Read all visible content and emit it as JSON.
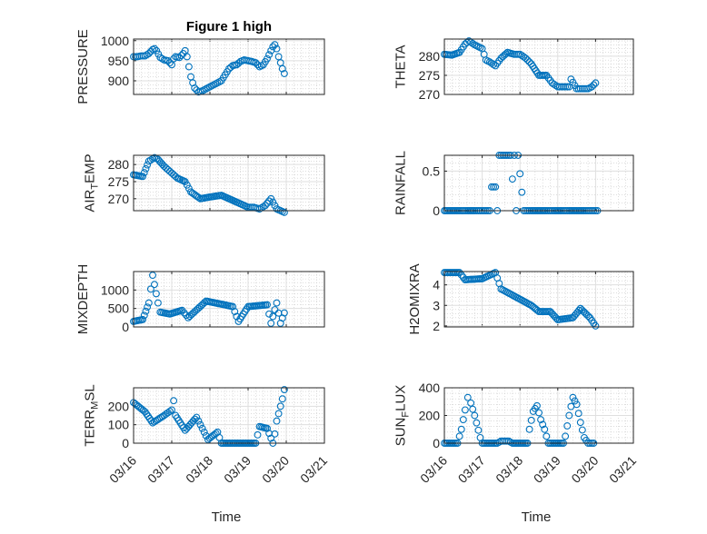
{
  "chart_data": [
    {
      "type": "scatter",
      "title": "Figure 1 high",
      "ylabel": {
        "main": "PRESSURE",
        "sub": "",
        "rest": ""
      },
      "xlabel": "",
      "ylim": [
        866,
        1004
      ],
      "yticks": [
        900,
        950,
        1000
      ],
      "series": [
        {
          "name": "PRESSURE",
          "x": [
            0,
            0.1,
            0.2,
            0.3,
            0.4,
            0.5,
            0.55,
            0.6,
            0.7,
            0.8,
            0.9,
            1.0,
            1.05,
            1.1,
            1.2,
            1.3,
            1.35,
            1.4,
            1.45,
            1.5,
            1.55,
            1.6,
            1.7,
            1.8,
            1.9,
            2.0,
            2.1,
            2.2,
            2.3,
            2.4,
            2.5,
            2.6,
            2.7,
            2.8,
            2.9,
            3.0,
            3.1,
            3.2,
            3.3,
            3.4,
            3.5,
            3.6,
            3.65,
            3.7,
            3.75,
            3.8,
            3.85,
            3.9,
            3.95
          ],
          "y": [
            960,
            960,
            962,
            962,
            968,
            978,
            980,
            975,
            958,
            952,
            950,
            940,
            955,
            960,
            958,
            968,
            975,
            960,
            935,
            910,
            895,
            882,
            872,
            875,
            880,
            885,
            890,
            895,
            900,
            915,
            930,
            938,
            940,
            948,
            952,
            950,
            948,
            945,
            935,
            940,
            955,
            975,
            985,
            990,
            980,
            960,
            945,
            930,
            918
          ]
        }
      ]
    },
    {
      "type": "scatter",
      "title": "",
      "ylabel": {
        "main": "THETA",
        "sub": "",
        "rest": ""
      },
      "xlabel": "",
      "ylim": [
        270,
        284.5
      ],
      "yticks": [
        270,
        275,
        280
      ],
      "series": [
        {
          "name": "THETA",
          "x": [
            0,
            0.2,
            0.4,
            0.55,
            0.65,
            0.8,
            1.0,
            1.1,
            1.2,
            1.35,
            1.5,
            1.67,
            1.85,
            2.0,
            2.15,
            2.3,
            2.5,
            2.7,
            2.85,
            3.0,
            3.15,
            3.3,
            3.35,
            3.5,
            3.65,
            3.8,
            3.9,
            4.0
          ],
          "y": [
            280.5,
            280.3,
            281,
            283.2,
            284,
            283,
            282,
            279,
            278.5,
            277.5,
            279.5,
            281,
            280.5,
            280.5,
            279.5,
            278,
            275,
            275,
            273,
            272,
            272,
            272,
            274,
            271.5,
            271.5,
            271.5,
            272,
            273
          ]
        }
      ]
    },
    {
      "type": "scatter",
      "title": "",
      "ylabel": {
        "main": "AIR",
        "sub": "T",
        "rest": "EMP"
      },
      "xlabel": "",
      "ylim": [
        266.5,
        282.7
      ],
      "yticks": [
        270,
        275,
        280
      ],
      "series": [
        {
          "name": "AIR_TEMP",
          "x": [
            0,
            0.24,
            0.4,
            0.55,
            0.64,
            0.8,
            0.95,
            1.15,
            1.35,
            1.5,
            1.75,
            2.0,
            2.3,
            2.5,
            2.7,
            3.0,
            3.15,
            3.3,
            3.45,
            3.6,
            3.75,
            3.85,
            3.95
          ],
          "y": [
            277,
            276.5,
            281,
            282,
            281.5,
            279.5,
            278,
            276,
            275,
            272,
            270,
            270.5,
            271,
            270,
            269,
            267.5,
            267.5,
            267,
            268,
            270,
            267,
            266.5,
            266
          ]
        }
      ]
    },
    {
      "type": "scatter",
      "title": "",
      "ylabel": {
        "main": "RAINFALL",
        "sub": "",
        "rest": ""
      },
      "xlabel": "",
      "ylim": [
        0,
        0.7
      ],
      "yticks": [
        0,
        0.5
      ],
      "series": [
        {
          "name": "RAINFALL",
          "x": [
            0,
            0.2,
            0.4,
            0.6,
            0.8,
            1.0,
            1.2,
            1.25,
            1.3,
            1.35,
            1.4,
            1.45,
            1.5,
            1.55,
            1.6,
            1.65,
            1.7,
            1.75,
            1.8,
            1.85,
            1.9,
            1.95,
            2.1,
            2.3,
            2.5,
            2.7,
            2.9,
            3.1,
            3.3,
            3.5,
            3.7,
            3.9,
            4.05
          ],
          "y": [
            0,
            0,
            0,
            0,
            0,
            0,
            0,
            0.3,
            0.3,
            0.3,
            0,
            0.7,
            0.7,
            0.7,
            0.7,
            0.7,
            0.7,
            0.7,
            0.4,
            0.7,
            0,
            0.7,
            0,
            0,
            0,
            0,
            0,
            0,
            0,
            0,
            0,
            0,
            0
          ]
        }
      ]
    },
    {
      "type": "scatter",
      "title": "",
      "ylabel": {
        "main": "MIXDEPTH",
        "sub": "",
        "rest": ""
      },
      "xlabel": "",
      "ylim": [
        0,
        1500
      ],
      "yticks": [
        0,
        500,
        1000
      ],
      "series": [
        {
          "name": "MIXDEPTH",
          "x": [
            0,
            0.24,
            0.4,
            0.5,
            0.64,
            0.7,
            0.95,
            1.27,
            1.43,
            1.9,
            2.38,
            2.6,
            2.75,
            3.0,
            3.5,
            3.55,
            3.6,
            3.75,
            3.85,
            3.95
          ],
          "y": [
            150,
            200,
            650,
            1400,
            650,
            400,
            350,
            450,
            250,
            700,
            600,
            550,
            150,
            550,
            600,
            350,
            100,
            650,
            100,
            380
          ]
        }
      ]
    },
    {
      "type": "scatter",
      "title": "",
      "ylabel": {
        "main": "H2OMIXRA",
        "sub": "",
        "rest": ""
      },
      "xlabel": "",
      "ylim": [
        1.95,
        4.65
      ],
      "yticks": [
        2,
        3,
        4
      ],
      "series": [
        {
          "name": "H2OMIXRA",
          "x": [
            0,
            0.4,
            0.55,
            1.0,
            1.35,
            1.5,
            1.8,
            2.3,
            2.5,
            2.8,
            3.0,
            3.4,
            3.6,
            3.85,
            4.0
          ],
          "y": [
            4.6,
            4.6,
            4.25,
            4.3,
            4.6,
            3.8,
            3.5,
            3.0,
            2.7,
            2.7,
            2.3,
            2.4,
            2.85,
            2.4,
            2.0
          ]
        }
      ]
    },
    {
      "type": "scatter",
      "title": "",
      "ylabel": {
        "main": "TERR",
        "sub": "M",
        "rest": "SL"
      },
      "xlabel": "Time",
      "ylim": [
        0,
        300
      ],
      "yticks": [
        0,
        100,
        200
      ],
      "series": [
        {
          "name": "TERR_MSL",
          "x": [
            0,
            0.3,
            0.5,
            0.8,
            1.0,
            1.05,
            1.1,
            1.35,
            1.65,
            1.8,
            1.95,
            2.2,
            2.3,
            2.7,
            3.2,
            3.3,
            3.5,
            3.65,
            3.7,
            3.75,
            3.9,
            3.95
          ],
          "y": [
            220,
            170,
            110,
            150,
            180,
            230,
            150,
            70,
            140,
            80,
            20,
            60,
            0,
            0,
            0,
            90,
            80,
            0,
            50,
            120,
            240,
            290
          ]
        }
      ]
    },
    {
      "type": "scatter",
      "title": "",
      "ylabel": {
        "main": "SUN",
        "sub": "F",
        "rest": "LUX"
      },
      "xlabel": "Time",
      "ylim": [
        0,
        400
      ],
      "yticks": [
        0,
        200,
        400
      ],
      "series": [
        {
          "name": "SUN_FLUX",
          "x": [
            0,
            0.35,
            0.45,
            0.55,
            0.62,
            0.7,
            0.8,
            0.95,
            1.0,
            1.4,
            1.5,
            1.7,
            1.8,
            2.2,
            2.25,
            2.35,
            2.45,
            2.55,
            2.65,
            2.75,
            3.15,
            3.2,
            3.3,
            3.4,
            3.5,
            3.6,
            3.7,
            3.8,
            3.95
          ],
          "y": [
            0,
            0,
            100,
            240,
            330,
            290,
            200,
            40,
            0,
            0,
            15,
            15,
            0,
            0,
            100,
            230,
            270,
            170,
            100,
            0,
            0,
            50,
            200,
            330,
            280,
            150,
            40,
            0,
            0
          ]
        }
      ]
    }
  ],
  "xaxis": {
    "ticks": [
      0,
      1,
      2,
      3,
      4,
      5
    ],
    "tick_labels": [
      "03/16",
      "03/17",
      "03/18",
      "03/19",
      "03/20",
      "03/21"
    ],
    "xlim": [
      0,
      5
    ],
    "unit": "days since 03/16"
  },
  "colors": {
    "marker": "#0072BD",
    "axis": "#262626",
    "grid": "#DFDFDF"
  }
}
